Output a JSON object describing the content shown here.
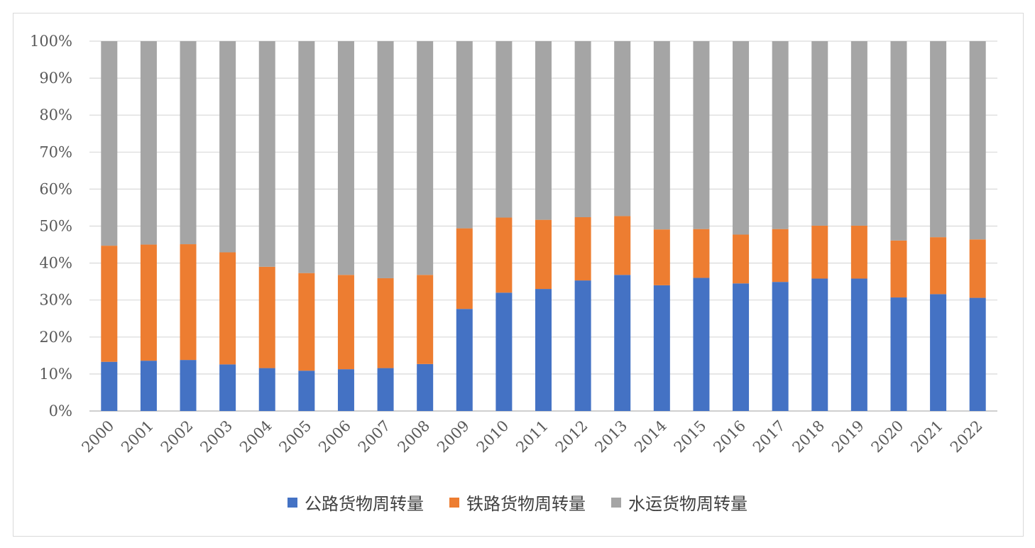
{
  "chart_data": {
    "type": "bar",
    "stacked": true,
    "percent_stacked": true,
    "categories": [
      "2000",
      "2001",
      "2002",
      "2003",
      "2004",
      "2005",
      "2006",
      "2007",
      "2008",
      "2009",
      "2010",
      "2011",
      "2012",
      "2013",
      "2014",
      "2015",
      "2016",
      "2017",
      "2018",
      "2019",
      "2020",
      "2021",
      "2022"
    ],
    "series": [
      {
        "name": "公路货物周转量",
        "color": "#4472C4",
        "values": [
          13.3,
          13.6,
          13.8,
          12.6,
          11.6,
          10.9,
          11.3,
          11.6,
          12.7,
          27.6,
          32.0,
          33.0,
          35.3,
          36.8,
          34.0,
          36.0,
          34.5,
          34.9,
          35.8,
          35.8,
          30.7,
          31.6,
          30.6
        ]
      },
      {
        "name": "铁路货物周转量",
        "color": "#ED7D31",
        "values": [
          31.4,
          31.4,
          31.3,
          30.3,
          27.4,
          26.4,
          25.5,
          24.3,
          24.1,
          21.8,
          20.3,
          18.7,
          17.1,
          15.9,
          15.1,
          13.2,
          13.2,
          14.3,
          14.3,
          14.3,
          15.4,
          15.4,
          15.8
        ]
      },
      {
        "name": "水运货物周转量",
        "color": "#A5A5A5",
        "values": [
          55.3,
          55.0,
          54.9,
          57.1,
          61.0,
          62.7,
          63.2,
          64.1,
          63.2,
          50.6,
          47.7,
          48.3,
          47.6,
          47.3,
          50.9,
          50.8,
          52.3,
          50.8,
          49.9,
          49.9,
          53.9,
          53.0,
          53.6
        ]
      }
    ],
    "y_ticks": [
      "0%",
      "10%",
      "20%",
      "30%",
      "40%",
      "50%",
      "60%",
      "70%",
      "80%",
      "90%",
      "100%"
    ],
    "ylim": [
      0,
      100
    ],
    "grid": true,
    "legend": "bottom",
    "xlabel": "",
    "ylabel": "",
    "title": ""
  }
}
